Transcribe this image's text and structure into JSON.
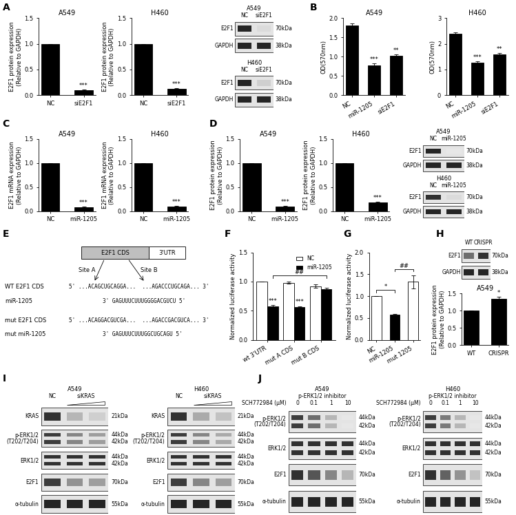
{
  "panel_labels": [
    "A",
    "B",
    "C",
    "D",
    "E",
    "F",
    "G",
    "H",
    "I",
    "J"
  ],
  "chart_data": [
    {
      "type": "bar",
      "title": "A549",
      "y_label": "E2F1 protein expression\n(Relative to GAPDH)",
      "categories": [
        "NC",
        "siE2F1"
      ],
      "values": [
        1.0,
        0.1
      ],
      "errors": [
        0,
        0.01
      ],
      "colors": [
        "#000000",
        "#000000"
      ],
      "ylim": [
        0,
        1.5
      ],
      "yticks": [
        {
          "value": 0,
          "label": "0.0"
        },
        0.5,
        {
          "value": 1,
          "label": "1.0"
        },
        1.5
      ],
      "annotations": [
        {
          "text": "***",
          "category": "siE2F1"
        }
      ]
    },
    {
      "type": "bar",
      "title": "H460",
      "y_label": "E2F1 protein expression\n(Relative to GAPDH)",
      "categories": [
        "NC",
        "siE2F1"
      ],
      "values": [
        1.0,
        0.13
      ],
      "errors": [
        0,
        0.01
      ],
      "colors": [
        "#000000",
        "#000000"
      ],
      "ylim": [
        0,
        1.5
      ],
      "yticks": [
        {
          "value": 0,
          "label": "0.0"
        },
        0.5,
        {
          "value": 1,
          "label": "1.0"
        },
        1.5
      ],
      "annotations": [
        {
          "text": "***",
          "category": "siE2F1"
        }
      ]
    },
    {
      "type": "bar",
      "title": "A549",
      "y_label": "OD(570nm)",
      "categories": [
        "NC",
        "miR-1205",
        "siE2F1"
      ],
      "values": [
        1.8,
        0.78,
        1.03
      ],
      "errors": [
        0.06,
        0.04,
        0.02
      ],
      "colors": [
        "#000000",
        "#000000",
        "#000000"
      ],
      "ylim": [
        0,
        2.0
      ],
      "yticks": [
        {
          "value": 0,
          "label": "0.0"
        },
        0.5,
        {
          "value": 1,
          "label": "1.0"
        },
        1.5,
        {
          "value": 2,
          "label": "2.0"
        }
      ],
      "annotations": [
        {
          "text": "***",
          "category": "miR-1205"
        },
        {
          "text": "**",
          "category": "siE2F1"
        }
      ]
    },
    {
      "type": "bar",
      "title": "H460",
      "y_label": "OD(570nm)",
      "categories": [
        "NC",
        "miR-1205",
        "siE2F1"
      ],
      "values": [
        2.4,
        1.28,
        1.6
      ],
      "errors": [
        0.05,
        0.04,
        0.04
      ],
      "colors": [
        "#000000",
        "#000000",
        "#000000"
      ],
      "ylim": [
        0,
        3
      ],
      "yticks": [
        0,
        1,
        2,
        3
      ],
      "annotations": [
        {
          "text": "***",
          "category": "miR-1205"
        },
        {
          "text": "**",
          "category": "siE2F1"
        }
      ]
    },
    {
      "type": "bar",
      "title": "A549",
      "y_label": "E2F1 mRNA expression\n(Relative to GAPDH)",
      "categories": [
        "NC",
        "miR-1205"
      ],
      "values": [
        1.0,
        0.08
      ],
      "errors": [
        0,
        0.01
      ],
      "colors": [
        "#000000",
        "#000000"
      ],
      "ylim": [
        0,
        1.5
      ],
      "yticks": [
        {
          "value": 0,
          "label": "0.0"
        },
        0.5,
        {
          "value": 1,
          "label": "1.0"
        },
        1.5
      ],
      "annotations": [
        {
          "text": "***",
          "category": "miR-1205"
        }
      ]
    },
    {
      "type": "bar",
      "title": "H460",
      "y_label": "E2F1 mRNA expression\n(Relative to GAPDH)",
      "categories": [
        "NC",
        "miR-1205"
      ],
      "values": [
        1.0,
        0.1
      ],
      "errors": [
        0,
        0.01
      ],
      "colors": [
        "#000000",
        "#000000"
      ],
      "ylim": [
        0,
        1.5
      ],
      "yticks": [
        {
          "value": 0,
          "label": "0.0"
        },
        0.5,
        {
          "value": 1,
          "label": "1.0"
        },
        1.5
      ],
      "annotations": [
        {
          "text": "***",
          "category": "miR-1205"
        }
      ]
    },
    {
      "type": "bar",
      "title": "A549",
      "y_label": "E2F1 protein expression\n(Relative to GAPDH)",
      "categories": [
        "NC",
        "miR-1205"
      ],
      "values": [
        1.0,
        0.1
      ],
      "errors": [
        0,
        0.01
      ],
      "colors": [
        "#000000",
        "#000000"
      ],
      "ylim": [
        0,
        1.5
      ],
      "yticks": [
        {
          "value": 0,
          "label": "0.0"
        },
        0.5,
        {
          "value": 1,
          "label": "1.0"
        },
        1.5
      ],
      "annotations": [
        {
          "text": "***",
          "category": "miR-1205"
        }
      ]
    },
    {
      "type": "bar",
      "title": "H460",
      "y_label": "E2F1 protein expression\n(Relative to GAPDH)",
      "categories": [
        "NC",
        "miR-1205"
      ],
      "values": [
        1.0,
        0.18
      ],
      "errors": [
        0,
        0.01
      ],
      "colors": [
        "#000000",
        "#000000"
      ],
      "ylim": [
        0,
        1.5
      ],
      "yticks": [
        {
          "value": 0,
          "label": "0.0"
        },
        0.5,
        {
          "value": 1,
          "label": "1.0"
        },
        1.5
      ],
      "annotations": [
        {
          "text": "***",
          "category": "miR-1205"
        }
      ]
    },
    {
      "type": "bar",
      "y_label": "Normalized luciferase activity",
      "categories": [
        "wt 3'UTR",
        "mut A CDS",
        "mut B CDS"
      ],
      "series": [
        {
          "name": "NC",
          "color": "#ffffff",
          "values": [
            1.0,
            0.98,
            0.92
          ],
          "errors": [
            0,
            0.02,
            0.03
          ]
        },
        {
          "name": "miR-1205",
          "color": "#000000",
          "values": [
            0.57,
            0.56,
            0.87
          ],
          "errors": [
            0.03,
            0.02,
            0.02
          ]
        }
      ],
      "legend": "upper right",
      "ylim": [
        0,
        1.5
      ],
      "yticks": [
        {
          "value": 0,
          "label": "0.0"
        },
        0.5,
        {
          "value": 1,
          "label": "1.0"
        },
        1.5
      ],
      "annotations": [
        {
          "text": "***",
          "category": "wt 3'UTR",
          "series": "miR-1205"
        },
        {
          "text": "***",
          "category": "mut A CDS",
          "series": "miR-1205"
        }
      ],
      "brackets": [
        {
          "text": "##",
          "from": "wt 3'UTR",
          "to": "mut B CDS",
          "series": "miR-1205"
        }
      ]
    },
    {
      "type": "bar",
      "y_label": "Normalized luciferase activity",
      "categories": [
        "NC",
        "miR-1205",
        "mut 1205"
      ],
      "values": [
        1.0,
        0.57,
        1.33
      ],
      "errors": [
        0,
        0.03,
        0.15
      ],
      "colors": [
        "#ffffff",
        "#000000",
        "#ffffff"
      ],
      "ylim": [
        0,
        2.0
      ],
      "yticks": [
        {
          "value": 0,
          "label": "0.0"
        },
        0.5,
        {
          "value": 1,
          "label": "1.0"
        },
        1.5,
        {
          "value": 2,
          "label": "2.0"
        }
      ],
      "brackets": [
        {
          "text": "*",
          "from": "NC",
          "to": "miR-1205"
        },
        {
          "text": "##",
          "from": "miR-1205",
          "to": "mut 1205"
        }
      ]
    },
    {
      "type": "bar",
      "title": "A549",
      "y_label": "E2F1 protein expression\n(Relative to GAPDH)",
      "categories": [
        "WT",
        "CRISPR"
      ],
      "values": [
        1.0,
        1.35
      ],
      "errors": [
        0,
        0.06
      ],
      "colors": [
        "#000000",
        "#000000"
      ],
      "ylim": [
        0,
        1.5
      ],
      "yticks": [
        {
          "value": 0,
          "label": "0.0"
        },
        0.5,
        {
          "value": 1,
          "label": "1.0"
        },
        1.5
      ],
      "annotations": [
        {
          "text": "*",
          "category": "CRISPR"
        }
      ]
    }
  ],
  "blots": [
    {
      "title": "A549",
      "lanes": [
        {
          "label": "NC"
        },
        {
          "label": "siE2F1"
        }
      ],
      "rows": [
        {
          "name": "E2F1",
          "kda": [
            "70kDa"
          ],
          "intensity": [
            0.9,
            0.15
          ]
        },
        {
          "name": "GAPDH",
          "kda": [
            "38kDa"
          ],
          "intensity": [
            0.9,
            0.9
          ]
        }
      ]
    },
    {
      "title": "H460",
      "lanes": [
        {
          "label": "NC"
        },
        {
          "label": "siE2F1"
        }
      ],
      "rows": [
        {
          "name": "E2F1",
          "kda": [
            "70kDa"
          ],
          "intensity": [
            0.9,
            0.2
          ]
        },
        {
          "name": "GAPDH",
          "kda": [
            "38kDa"
          ],
          "intensity": [
            0.9,
            0.9
          ]
        }
      ]
    },
    {
      "title": "A549",
      "lanes": [
        {
          "label": "NC"
        },
        {
          "label": "miR-1205"
        }
      ],
      "rows": [
        {
          "name": "E2F1",
          "kda": [
            "70kDa"
          ],
          "intensity": [
            0.9,
            0.1
          ]
        },
        {
          "name": "GAPDH",
          "kda": [
            "38kDa"
          ],
          "intensity": [
            0.9,
            0.9
          ]
        }
      ]
    },
    {
      "title": "H460",
      "lanes": [
        {
          "label": "NC"
        },
        {
          "label": "miR-1205"
        }
      ],
      "rows": [
        {
          "name": "E2F1",
          "kda": [
            "70kDa"
          ],
          "intensity": [
            0.85,
            0.15
          ]
        },
        {
          "name": "GAPDH",
          "kda": [
            "38kDa"
          ],
          "intensity": [
            0.9,
            0.9
          ]
        }
      ]
    },
    {
      "lanes": [
        {
          "label": "WT"
        },
        {
          "label": "CRISPR"
        }
      ],
      "rows": [
        {
          "name": "E2F1",
          "kda": [
            "70kDa"
          ],
          "intensity": [
            0.6,
            0.85
          ]
        },
        {
          "name": "GAPDH",
          "kda": [
            "38kDa"
          ],
          "intensity": [
            0.9,
            0.9
          ]
        }
      ]
    },
    {
      "title": "A549",
      "lanes": [
        {
          "label": "NC"
        },
        {
          "label": "siKRAS",
          "span": 2,
          "wedge": true
        }
      ],
      "rows": [
        {
          "name": "KRAS",
          "kda": [
            "21kDa"
          ],
          "intensity": [
            0.85,
            0.3,
            0.2
          ]
        },
        {
          "name": "p-ERK1/2\n(T202/T204)",
          "kda": [
            "44kDa",
            "42kDa"
          ],
          "intensity": [
            0.8,
            0.5,
            0.4
          ]
        },
        {
          "name": "ERK1/2",
          "kda": [
            "44kDa",
            "42kDa"
          ],
          "intensity": [
            0.85,
            0.85,
            0.85
          ]
        },
        {
          "name": "E2F1",
          "kda": [
            "70kDa"
          ],
          "intensity": [
            0.8,
            0.45,
            0.4
          ]
        },
        {
          "name": "α-tubulin",
          "kda": [
            "55kDa"
          ],
          "intensity": [
            0.9,
            0.9,
            0.9
          ]
        }
      ]
    },
    {
      "title": "H460",
      "lanes": [
        {
          "label": "NC"
        },
        {
          "label": "siKRAS",
          "span": 2,
          "wedge": true
        }
      ],
      "rows": [
        {
          "name": "KRAS",
          "kda": [
            "21kDa"
          ],
          "intensity": [
            0.85,
            0.35,
            0.25
          ]
        },
        {
          "name": "p-ERK1/2\n(T202/T204)",
          "kda": [
            "44kDa",
            "42kDa"
          ],
          "intensity": [
            0.8,
            0.5,
            0.35
          ]
        },
        {
          "name": "ERK1/2",
          "kda": [
            "44kDa",
            "42kDa"
          ],
          "intensity": [
            0.85,
            0.85,
            0.85
          ]
        },
        {
          "name": "E2F1",
          "kda": [
            "70kDa"
          ],
          "intensity": [
            0.8,
            0.5,
            0.4
          ]
        },
        {
          "name": "α-tubulin",
          "kda": [
            "55kDa"
          ],
          "intensity": [
            0.9,
            0.9,
            0.9
          ]
        }
      ]
    },
    {
      "title": "A549",
      "header": "p-ERK1/2 inhibitor",
      "lane_title": "SCH772984 (μM)",
      "lanes": [
        {
          "label": "0"
        },
        {
          "label": "0.1"
        },
        {
          "label": "1"
        },
        {
          "label": "10"
        }
      ],
      "rows": [
        {
          "name": "p-ERK1/2\n(T202/T204)",
          "kda": [
            "44kDa",
            "42kDa"
          ],
          "intensity": [
            0.8,
            0.6,
            0.3,
            0.1
          ]
        },
        {
          "name": "ERK1/2",
          "kda": [
            "44kDa",
            "42kDa"
          ],
          "intensity": [
            0.85,
            0.85,
            0.85,
            0.85
          ]
        },
        {
          "name": "E2F1",
          "kda": [
            "70kDa"
          ],
          "intensity": [
            0.85,
            0.7,
            0.5,
            0.3
          ]
        },
        {
          "name": "α-tubulin",
          "kda": [
            "55kDa"
          ],
          "intensity": [
            0.9,
            0.9,
            0.9,
            0.9
          ]
        }
      ]
    },
    {
      "title": "H460",
      "header": "p-ERK1/2 inhibitor",
      "lane_title": "SCH772984 (μM)",
      "lanes": [
        {
          "label": "0"
        },
        {
          "label": "0.1"
        },
        {
          "label": "1"
        },
        {
          "label": "10"
        }
      ],
      "rows": [
        {
          "name": "p-ERK1/2\n(T202/T204)",
          "kda": [
            "44kDa",
            "42kDa"
          ],
          "intensity": [
            0.8,
            0.55,
            0.3,
            0.1
          ]
        },
        {
          "name": "ERK1/2",
          "kda": [
            "44kDa",
            "42kDa"
          ],
          "intensity": [
            0.85,
            0.85,
            0.85,
            0.85
          ]
        },
        {
          "name": "E2F1",
          "kda": [
            "70kDa"
          ],
          "intensity": [
            0.85,
            0.65,
            0.45,
            0.25
          ]
        },
        {
          "name": "α-tubulin",
          "kda": [
            "55kDa"
          ],
          "intensity": [
            0.9,
            0.9,
            0.9,
            0.9
          ]
        }
      ]
    }
  ],
  "diagram": {
    "boxes": [
      "E2F1 CDS",
      "3'UTR"
    ],
    "sequences": [
      {
        "name": "WT E2F1 CDS",
        "sequence": "5' ...ACAGCUGCAGGA...  ...AGACCCUGCAGA... 3'"
      },
      {
        "name": "miR-1205",
        "sequence": "3' GAGUUUCUUUGGGGACGUCU 5'"
      },
      {
        "name": "mut E2F1 CDS",
        "sequence": "5' ...ACAGGACGUCGA...  ...AGACCGACGUCA... 3'"
      },
      {
        "name": "mut miR-1205",
        "sequence": "3' GAGUUUCUUUGGCUGCAGU 5'"
      }
    ],
    "sites": [
      "Site A",
      "Site B"
    ]
  }
}
